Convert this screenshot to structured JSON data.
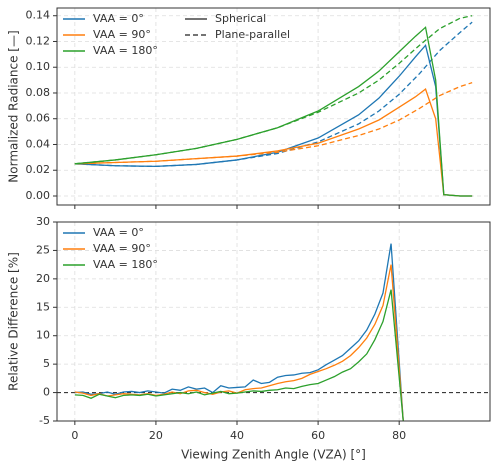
{
  "chart_data": [
    {
      "type": "line",
      "ylabel": "Normalized Radiance [—]",
      "xlim": [
        -4.4,
        102.4
      ],
      "ylim": [
        -0.007,
        0.146
      ],
      "xticks": [
        0,
        20,
        40,
        60,
        80
      ],
      "yticks": [
        {
          "value": 0,
          "label": "0.00"
        },
        {
          "value": 0.02,
          "label": "0.02"
        },
        {
          "value": 0.04,
          "label": "0.04"
        },
        {
          "value": 0.06,
          "label": "0.06"
        },
        {
          "value": 0.08,
          "label": "0.08"
        },
        {
          "value": 0.1,
          "label": "0.10"
        },
        {
          "value": 0.12,
          "label": "0.12"
        },
        {
          "value": 0.14,
          "label": "0.14"
        }
      ],
      "grid": true,
      "legend": "upper left",
      "styles": [
        {
          "name": "Spherical",
          "dash": "solid"
        },
        {
          "name": "Plane-parallel",
          "dash": "dashed"
        }
      ],
      "series": [
        {
          "name": "VAA = 0°",
          "color": "#1f77b4",
          "lines": [
            {
              "style": "solid",
              "x": [
                0,
                10,
                20,
                30,
                40,
                50,
                60,
                70,
                75,
                80,
                84,
                86.5,
                89,
                91,
                95,
                98
              ],
              "values": [
                0.025,
                0.0235,
                0.023,
                0.0245,
                0.028,
                0.034,
                0.045,
                0.063,
                0.076,
                0.093,
                0.108,
                0.117,
                0.085,
                0.001,
                0,
                0
              ]
            },
            {
              "style": "dashed",
              "x": [
                0,
                10,
                20,
                30,
                40,
                50,
                60,
                70,
                75,
                80,
                85,
                90,
                95,
                98
              ],
              "values": [
                0.025,
                0.0235,
                0.023,
                0.0245,
                0.028,
                0.033,
                0.042,
                0.056,
                0.066,
                0.079,
                0.095,
                0.113,
                0.127,
                0.135
              ]
            }
          ]
        },
        {
          "name": "VAA = 90°",
          "color": "#ff7f0e",
          "lines": [
            {
              "style": "solid",
              "x": [
                0,
                10,
                20,
                30,
                40,
                50,
                60,
                70,
                75,
                80,
                84,
                86.5,
                89,
                91,
                95,
                98
              ],
              "values": [
                0.025,
                0.026,
                0.027,
                0.029,
                0.031,
                0.035,
                0.041,
                0.052,
                0.059,
                0.069,
                0.077,
                0.083,
                0.06,
                0.001,
                0,
                0
              ]
            },
            {
              "style": "dashed",
              "x": [
                0,
                10,
                20,
                30,
                40,
                50,
                60,
                70,
                75,
                80,
                85,
                90,
                95,
                98
              ],
              "values": [
                0.025,
                0.026,
                0.027,
                0.029,
                0.031,
                0.034,
                0.039,
                0.047,
                0.052,
                0.059,
                0.068,
                0.078,
                0.085,
                0.088
              ]
            }
          ]
        },
        {
          "name": "VAA = 180°",
          "color": "#2ca02c",
          "lines": [
            {
              "style": "solid",
              "x": [
                0,
                10,
                20,
                30,
                40,
                50,
                60,
                70,
                75,
                80,
                84,
                86.5,
                89,
                91,
                95,
                98
              ],
              "values": [
                0.025,
                0.028,
                0.032,
                0.037,
                0.044,
                0.053,
                0.066,
                0.085,
                0.097,
                0.112,
                0.124,
                0.131,
                0.09,
                0.001,
                0,
                0
              ]
            },
            {
              "style": "dashed",
              "x": [
                0,
                10,
                20,
                30,
                40,
                50,
                60,
                70,
                75,
                80,
                85,
                90,
                95,
                98
              ],
              "values": [
                0.025,
                0.028,
                0.032,
                0.037,
                0.044,
                0.053,
                0.065,
                0.08,
                0.09,
                0.103,
                0.117,
                0.13,
                0.138,
                0.14
              ]
            }
          ]
        }
      ]
    },
    {
      "type": "line",
      "xlabel": "Viewing Zenith Angle (VZA) [°]",
      "ylabel": "Relative Difference [%]",
      "xlim": [
        -4.4,
        102.4
      ],
      "ylim": [
        -5,
        30
      ],
      "xticks": [
        0,
        20,
        40,
        60,
        80
      ],
      "yticks": [
        -5,
        0,
        5,
        10,
        15,
        20,
        25,
        30
      ],
      "grid": true,
      "legend": "upper left",
      "hlines": [
        0
      ],
      "x": [
        0,
        2,
        4,
        6,
        8,
        10,
        12,
        14,
        16,
        18,
        20,
        22,
        24,
        26,
        28,
        30,
        32,
        34,
        36,
        38,
        40,
        42,
        44,
        46,
        48,
        50,
        52,
        54,
        56,
        58,
        60,
        62,
        64,
        66,
        68,
        70,
        72,
        74,
        76,
        78,
        81
      ],
      "series": [
        {
          "name": "VAA = 0°",
          "color": "#1f77b4",
          "values": [
            0,
            0.1,
            -0.3,
            -0.2,
            0.1,
            -0.3,
            0.1,
            0.2,
            0,
            0.3,
            0.1,
            -0.1,
            0.6,
            0.4,
            1.0,
            0.6,
            0.8,
            0,
            1.2,
            0.8,
            0.9,
            1.0,
            2.2,
            1.6,
            1.8,
            2.7,
            3.0,
            3.1,
            3.4,
            3.5,
            4.0,
            4.9,
            5.7,
            6.5,
            7.8,
            9.1,
            11.0,
            13.8,
            17.5,
            26.2,
            -5
          ]
        },
        {
          "name": "VAA = 90°",
          "color": "#ff7f0e",
          "values": [
            0.1,
            -0.1,
            -0.5,
            -0.2,
            -0.6,
            -0.4,
            -0.2,
            -0.3,
            -0.4,
            -0.2,
            -0.5,
            -0.3,
            0.1,
            -0.2,
            0.3,
            0.4,
            0,
            -0.3,
            0.1,
            0.3,
            -0.1,
            0.5,
            0.7,
            0.8,
            1.2,
            1.6,
            1.9,
            2.1,
            2.5,
            3.2,
            3.7,
            4.2,
            4.8,
            5.5,
            6.5,
            7.9,
            9.6,
            12.0,
            15.3,
            22.5,
            -5
          ]
        },
        {
          "name": "VAA = 180°",
          "color": "#2ca02c",
          "values": [
            -0.4,
            -0.5,
            -1.0,
            -0.3,
            -0.6,
            -0.9,
            -0.5,
            -0.4,
            -0.5,
            -0.3,
            -0.6,
            -0.4,
            -0.2,
            0,
            -0.2,
            0.1,
            -0.4,
            -0.1,
            0.2,
            -0.2,
            -0.1,
            0.1,
            0.3,
            0.2,
            0.4,
            0.5,
            0.8,
            0.7,
            1.1,
            1.4,
            1.6,
            2.2,
            2.8,
            3.6,
            4.2,
            5.4,
            6.8,
            9.3,
            12.5,
            18.1,
            -5
          ]
        }
      ]
    }
  ]
}
